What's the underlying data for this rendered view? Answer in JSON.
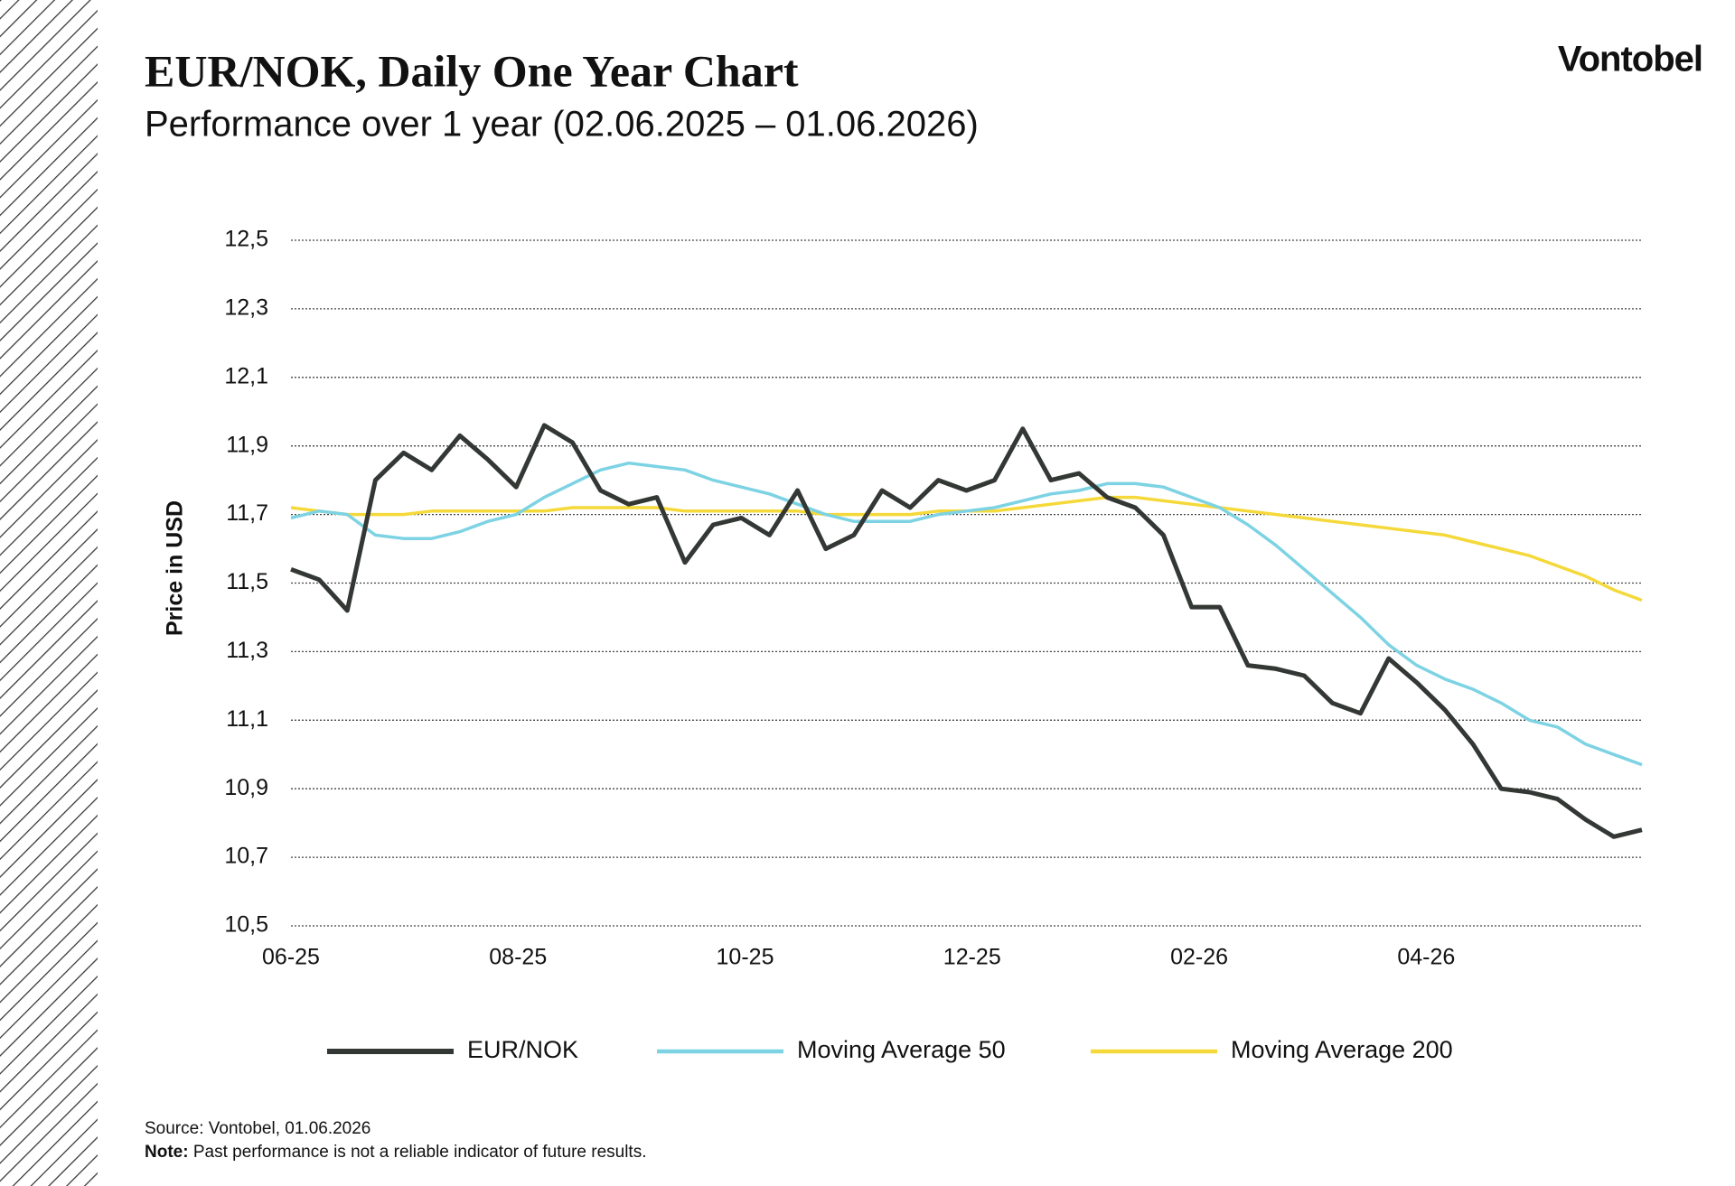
{
  "brand": "Vontobel",
  "chart_data": {
    "type": "line",
    "title": "EUR/NOK, Daily One Year Chart",
    "subtitle": "Performance over 1 year (02.06.2025 – 01.06.2026)",
    "y_label": "Price in USD",
    "xlim": [
      0,
      11.9
    ],
    "xticks": [
      {
        "value": 0,
        "label": "06-25"
      },
      {
        "value": 2,
        "label": "08-25"
      },
      {
        "value": 4,
        "label": "10-25"
      },
      {
        "value": 6,
        "label": "12-25"
      },
      {
        "value": 8,
        "label": "02-26"
      },
      {
        "value": 10,
        "label": "04-26"
      }
    ],
    "ylim": [
      10.5,
      12.5
    ],
    "yticks": [
      {
        "value": 10.5,
        "label": "10,5"
      },
      {
        "value": 10.7,
        "label": "10,7"
      },
      {
        "value": 10.9,
        "label": "10,9"
      },
      {
        "value": 11.1,
        "label": "11,1"
      },
      {
        "value": 11.3,
        "label": "11,3"
      },
      {
        "value": 11.5,
        "label": "11,5"
      },
      {
        "value": 11.7,
        "label": "11,7"
      },
      {
        "value": 11.9,
        "label": "11,9"
      },
      {
        "value": 12.1,
        "label": "12,1"
      },
      {
        "value": 12.3,
        "label": "12,3"
      },
      {
        "value": 12.5,
        "label": "12,5"
      }
    ],
    "grid": true,
    "series": [
      {
        "name": "EUR/NOK",
        "color": "#333835",
        "width": 5,
        "values": [
          11.54,
          11.51,
          11.42,
          11.8,
          11.88,
          11.83,
          11.93,
          11.86,
          11.78,
          11.96,
          11.91,
          11.77,
          11.73,
          11.75,
          11.56,
          11.67,
          11.69,
          11.64,
          11.77,
          11.6,
          11.64,
          11.77,
          11.72,
          11.8,
          11.77,
          11.8,
          11.95,
          11.8,
          11.82,
          11.75,
          11.72,
          11.64,
          11.43,
          11.43,
          11.26,
          11.25,
          11.23,
          11.15,
          11.12,
          11.28,
          11.21,
          11.13,
          11.03,
          10.9,
          10.89,
          10.87,
          10.81,
          10.76,
          10.78
        ]
      },
      {
        "name": "Moving Average 50",
        "color": "#7dd3e3",
        "width": 3.5,
        "values": [
          11.69,
          11.71,
          11.7,
          11.64,
          11.63,
          11.63,
          11.65,
          11.68,
          11.7,
          11.75,
          11.79,
          11.83,
          11.85,
          11.84,
          11.83,
          11.8,
          11.78,
          11.76,
          11.73,
          11.7,
          11.68,
          11.68,
          11.68,
          11.7,
          11.71,
          11.72,
          11.74,
          11.76,
          11.77,
          11.79,
          11.79,
          11.78,
          11.75,
          11.72,
          11.67,
          11.61,
          11.54,
          11.47,
          11.4,
          11.32,
          11.26,
          11.22,
          11.19,
          11.15,
          11.1,
          11.08,
          11.03,
          11.0,
          10.97
        ]
      },
      {
        "name": "Moving Average 200",
        "color": "#f5d93a",
        "width": 3.5,
        "values": [
          11.72,
          11.71,
          11.7,
          11.7,
          11.7,
          11.71,
          11.71,
          11.71,
          11.71,
          11.71,
          11.72,
          11.72,
          11.72,
          11.72,
          11.71,
          11.71,
          11.71,
          11.71,
          11.71,
          11.7,
          11.7,
          11.7,
          11.7,
          11.71,
          11.71,
          11.71,
          11.72,
          11.73,
          11.74,
          11.75,
          11.75,
          11.74,
          11.73,
          11.72,
          11.71,
          11.7,
          11.69,
          11.68,
          11.67,
          11.66,
          11.65,
          11.64,
          11.62,
          11.6,
          11.58,
          11.55,
          11.52,
          11.48,
          11.45
        ]
      }
    ]
  },
  "footer": {
    "source": "Source: Vontobel, 01.06.2026",
    "note_label": "Note:",
    "note": "Past performance is not a reliable indicator of future results."
  }
}
